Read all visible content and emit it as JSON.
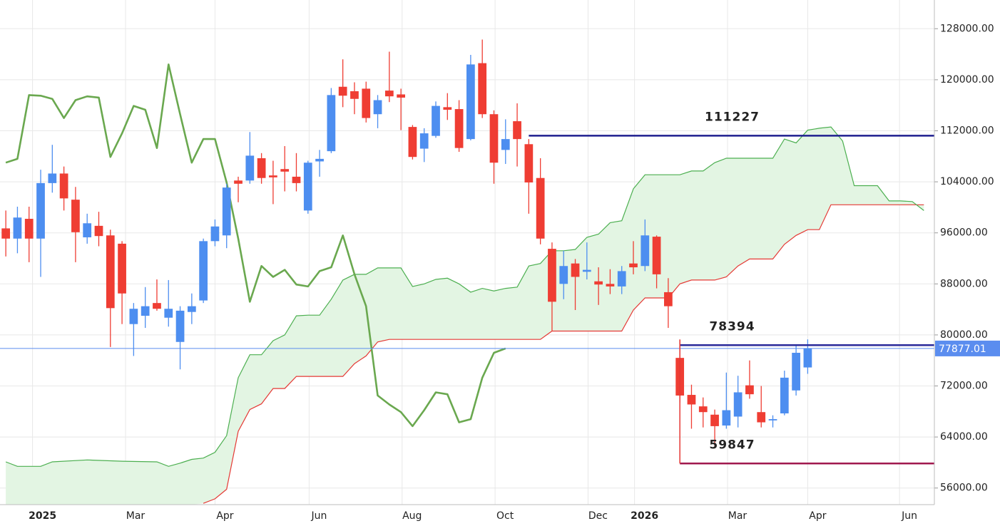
{
  "chart_data": {
    "type": "candlestick",
    "xlim": [
      -0.5,
      79.9
    ],
    "xticks": [
      {
        "value": 2.3,
        "label": "2025",
        "bold": true
      },
      {
        "value": 10.3,
        "label": "Mar"
      },
      {
        "value": 18.0,
        "label": "Apr"
      },
      {
        "value": 26.1,
        "label": "Jun"
      },
      {
        "value": 34.1,
        "label": "Aug"
      },
      {
        "value": 42.1,
        "label": "Oct"
      },
      {
        "value": 50.1,
        "label": "Dec"
      },
      {
        "value": 54.1,
        "label": "2026",
        "bold": true
      },
      {
        "value": 62.1,
        "label": "Mar"
      },
      {
        "value": 69.0,
        "label": "Apr"
      },
      {
        "value": 76.9,
        "label": "Jun"
      }
    ],
    "ylim": [
      53400,
      132500
    ],
    "yticks": [
      {
        "value": 56000,
        "label": "56000.00"
      },
      {
        "value": 64000,
        "label": "64000.00"
      },
      {
        "value": 72000,
        "label": "72000.00"
      },
      {
        "value": 80000,
        "label": "80000.00"
      },
      {
        "value": 88000,
        "label": "88000.00"
      },
      {
        "value": 96000,
        "label": "96000.00"
      },
      {
        "value": 104000,
        "label": "104000.00"
      },
      {
        "value": 112000,
        "label": "112000.00"
      },
      {
        "value": 120000,
        "label": "120000.00"
      },
      {
        "value": 128000,
        "label": "128000.00"
      }
    ],
    "grid": true,
    "up_color": "#4d8ef0",
    "down_color": "#ef3d33",
    "candles": {
      "x": [
        0,
        1,
        2,
        3,
        4,
        5,
        6,
        7,
        8,
        9,
        10,
        11,
        12,
        13,
        14,
        15,
        16,
        17,
        18,
        19,
        20,
        21,
        22,
        23,
        24,
        25,
        26,
        27,
        28,
        29,
        30,
        31,
        32,
        33,
        34,
        35,
        36,
        37,
        38,
        39,
        40,
        41,
        42,
        43,
        44,
        45,
        46,
        47,
        48,
        49,
        50,
        51,
        52,
        53,
        54,
        55,
        56,
        57,
        58,
        59,
        60,
        61,
        62,
        63,
        64,
        65,
        66,
        67,
        68,
        69
      ],
      "open": [
        96700,
        95100,
        98200,
        95100,
        103800,
        105300,
        101200,
        95300,
        97100,
        95600,
        94300,
        81700,
        83000,
        85000,
        82700,
        78900,
        83600,
        85400,
        94700,
        95600,
        104200,
        104200,
        107700,
        105000,
        106000,
        104800,
        99500,
        107200,
        108800,
        118900,
        118200,
        118600,
        114600,
        118300,
        117700,
        112600,
        109200,
        111200,
        115700,
        115400,
        110700,
        122600,
        114600,
        109000,
        113500,
        109900,
        104600,
        93500,
        88000,
        91200,
        89900,
        88400,
        88000,
        87600,
        91200,
        90800,
        95400,
        86700,
        76400,
        70600,
        68800,
        67500,
        65800,
        67200,
        72100,
        67900,
        66600,
        67700,
        71300,
        74900
      ],
      "high": [
        99500,
        100100,
        100100,
        105900,
        109800,
        106400,
        103200,
        99000,
        99300,
        96500,
        94700,
        85000,
        87500,
        88700,
        88600,
        84500,
        86500,
        95100,
        98100,
        103700,
        104800,
        111800,
        108500,
        107300,
        109600,
        108500,
        107300,
        109000,
        118700,
        123200,
        119600,
        119700,
        117600,
        124400,
        118600,
        112900,
        112400,
        116600,
        117900,
        116800,
        123900,
        126300,
        115200,
        113800,
        116300,
        110700,
        107700,
        94500,
        93200,
        91900,
        94500,
        90600,
        90300,
        90800,
        94700,
        98100,
        95600,
        88900,
        79200,
        72200,
        70200,
        68300,
        74100,
        73600,
        76000,
        72000,
        67400,
        74400,
        78300,
        79300
      ],
      "low": [
        92300,
        92800,
        91400,
        89100,
        102300,
        99500,
        91400,
        94300,
        93900,
        78100,
        81700,
        76700,
        81100,
        83800,
        81300,
        74600,
        81700,
        85000,
        93900,
        93600,
        100800,
        103700,
        103700,
        100500,
        102500,
        102500,
        99000,
        104800,
        108500,
        115700,
        114600,
        113300,
        112400,
        116500,
        112100,
        107500,
        107100,
        110900,
        113700,
        108700,
        110500,
        114000,
        103700,
        106800,
        106400,
        99000,
        94200,
        80600,
        85600,
        83900,
        88700,
        84700,
        86400,
        86400,
        89500,
        90000,
        87300,
        81100,
        69400,
        65300,
        65500,
        62600,
        65300,
        65500,
        70000,
        65500,
        65500,
        67400,
        70500,
        73900
      ],
      "close": [
        95100,
        98400,
        95100,
        103800,
        105300,
        101400,
        96100,
        97500,
        95500,
        84200,
        86500,
        84100,
        84500,
        84100,
        84100,
        83800,
        84500,
        94700,
        97000,
        103100,
        103700,
        108100,
        104600,
        104700,
        105600,
        103800,
        107000,
        107600,
        117600,
        117500,
        117000,
        114000,
        116800,
        117400,
        117200,
        107900,
        111600,
        115900,
        115300,
        109300,
        122400,
        114600,
        107000,
        110700,
        110700,
        103900,
        95100,
        85200,
        90800,
        89100,
        90200,
        87900,
        87600,
        90000,
        90600,
        95600,
        89500,
        84500,
        70500,
        69100,
        67900,
        65700,
        68200,
        71000,
        70700,
        66300,
        66800,
        73300,
        77200,
        77877.01
      ]
    },
    "cloud": {
      "x": [
        0,
        1,
        3,
        4,
        7,
        10,
        13,
        14,
        15,
        16,
        17,
        18,
        19,
        20,
        21,
        22,
        23,
        24,
        25,
        26,
        27,
        28,
        29,
        30,
        31,
        32,
        33,
        34,
        35,
        36,
        37,
        38,
        39,
        40,
        41,
        42,
        43,
        44,
        45,
        46,
        47,
        48,
        49,
        50,
        51,
        52,
        53,
        54,
        55,
        56,
        57,
        58,
        59,
        60,
        61,
        62,
        63,
        64,
        65,
        66,
        67,
        68,
        69,
        70,
        71,
        72,
        73,
        74,
        75,
        76,
        77,
        78,
        79
      ],
      "span_a": [
        60100,
        59400,
        59400,
        60100,
        60400,
        60200,
        60100,
        59400,
        59900,
        60500,
        60700,
        61600,
        64200,
        73300,
        76900,
        76900,
        79100,
        80000,
        83000,
        83100,
        83100,
        85600,
        88600,
        89500,
        89500,
        90500,
        90500,
        90500,
        87600,
        88000,
        88700,
        88900,
        88000,
        86700,
        87300,
        86900,
        87300,
        87500,
        90800,
        91200,
        93200,
        93200,
        93400,
        95300,
        95800,
        97600,
        97900,
        102900,
        105100,
        105100,
        105100,
        105100,
        105700,
        105700,
        107000,
        107700,
        107700,
        107700,
        107700,
        107700,
        110700,
        110100,
        112100,
        112400,
        112600,
        110400,
        103400,
        103400,
        103400,
        101000,
        101000,
        100900,
        99500
      ],
      "span_b": [
        null,
        null,
        null,
        null,
        null,
        null,
        null,
        null,
        null,
        null,
        53600,
        54300,
        55800,
        64900,
        68300,
        69200,
        71600,
        71600,
        73500,
        73500,
        73500,
        73500,
        73500,
        75500,
        76700,
        78900,
        79300,
        79300,
        79300,
        79300,
        79300,
        79300,
        79300,
        79300,
        79300,
        79300,
        79300,
        79300,
        79300,
        79300,
        80600,
        80600,
        80600,
        80600,
        80600,
        80600,
        80600,
        83900,
        85800,
        85800,
        85800,
        88000,
        88600,
        88600,
        88600,
        89100,
        90800,
        91900,
        91900,
        91900,
        94200,
        95600,
        96500,
        96500,
        100400,
        100400,
        100400,
        100400,
        100400,
        100400,
        100400,
        100400,
        100400
      ],
      "span_a_color": "#4caf50",
      "span_b_color": "#e53935",
      "fill": "#e3f5e3"
    },
    "lagging": {
      "x": [
        0,
        1,
        2,
        3,
        4,
        5,
        6,
        7,
        8,
        9,
        10,
        11,
        12,
        13,
        14,
        15,
        16,
        17,
        18,
        19,
        20,
        21,
        22,
        23,
        24,
        25,
        26,
        27,
        28,
        29,
        30,
        31,
        32,
        33,
        34,
        35,
        36,
        37,
        38,
        39,
        40,
        41,
        42,
        43
      ],
      "values": [
        107000,
        107600,
        117600,
        117500,
        117000,
        114000,
        116800,
        117400,
        117200,
        107900,
        111600,
        115900,
        115300,
        109300,
        122400,
        114600,
        107000,
        110700,
        110700,
        103900,
        95100,
        85200,
        90800,
        89100,
        90200,
        87900,
        87600,
        90000,
        90600,
        95600,
        89500,
        84500,
        70500,
        69100,
        67900,
        65700,
        68200,
        71000,
        70700,
        66300,
        66800,
        73300,
        77200,
        77877.01
      ],
      "color": "#6aa84f"
    },
    "levels": [
      {
        "value": 111227,
        "x": 45,
        "color": "#1f1f8f"
      },
      {
        "value": 78394,
        "x": 58,
        "color": "#2a2a9a"
      },
      {
        "value": 59847,
        "x": 58,
        "color": "#a0184e"
      }
    ],
    "connector_color": "#e53935",
    "last_price_color": "#5b8def"
  }
}
